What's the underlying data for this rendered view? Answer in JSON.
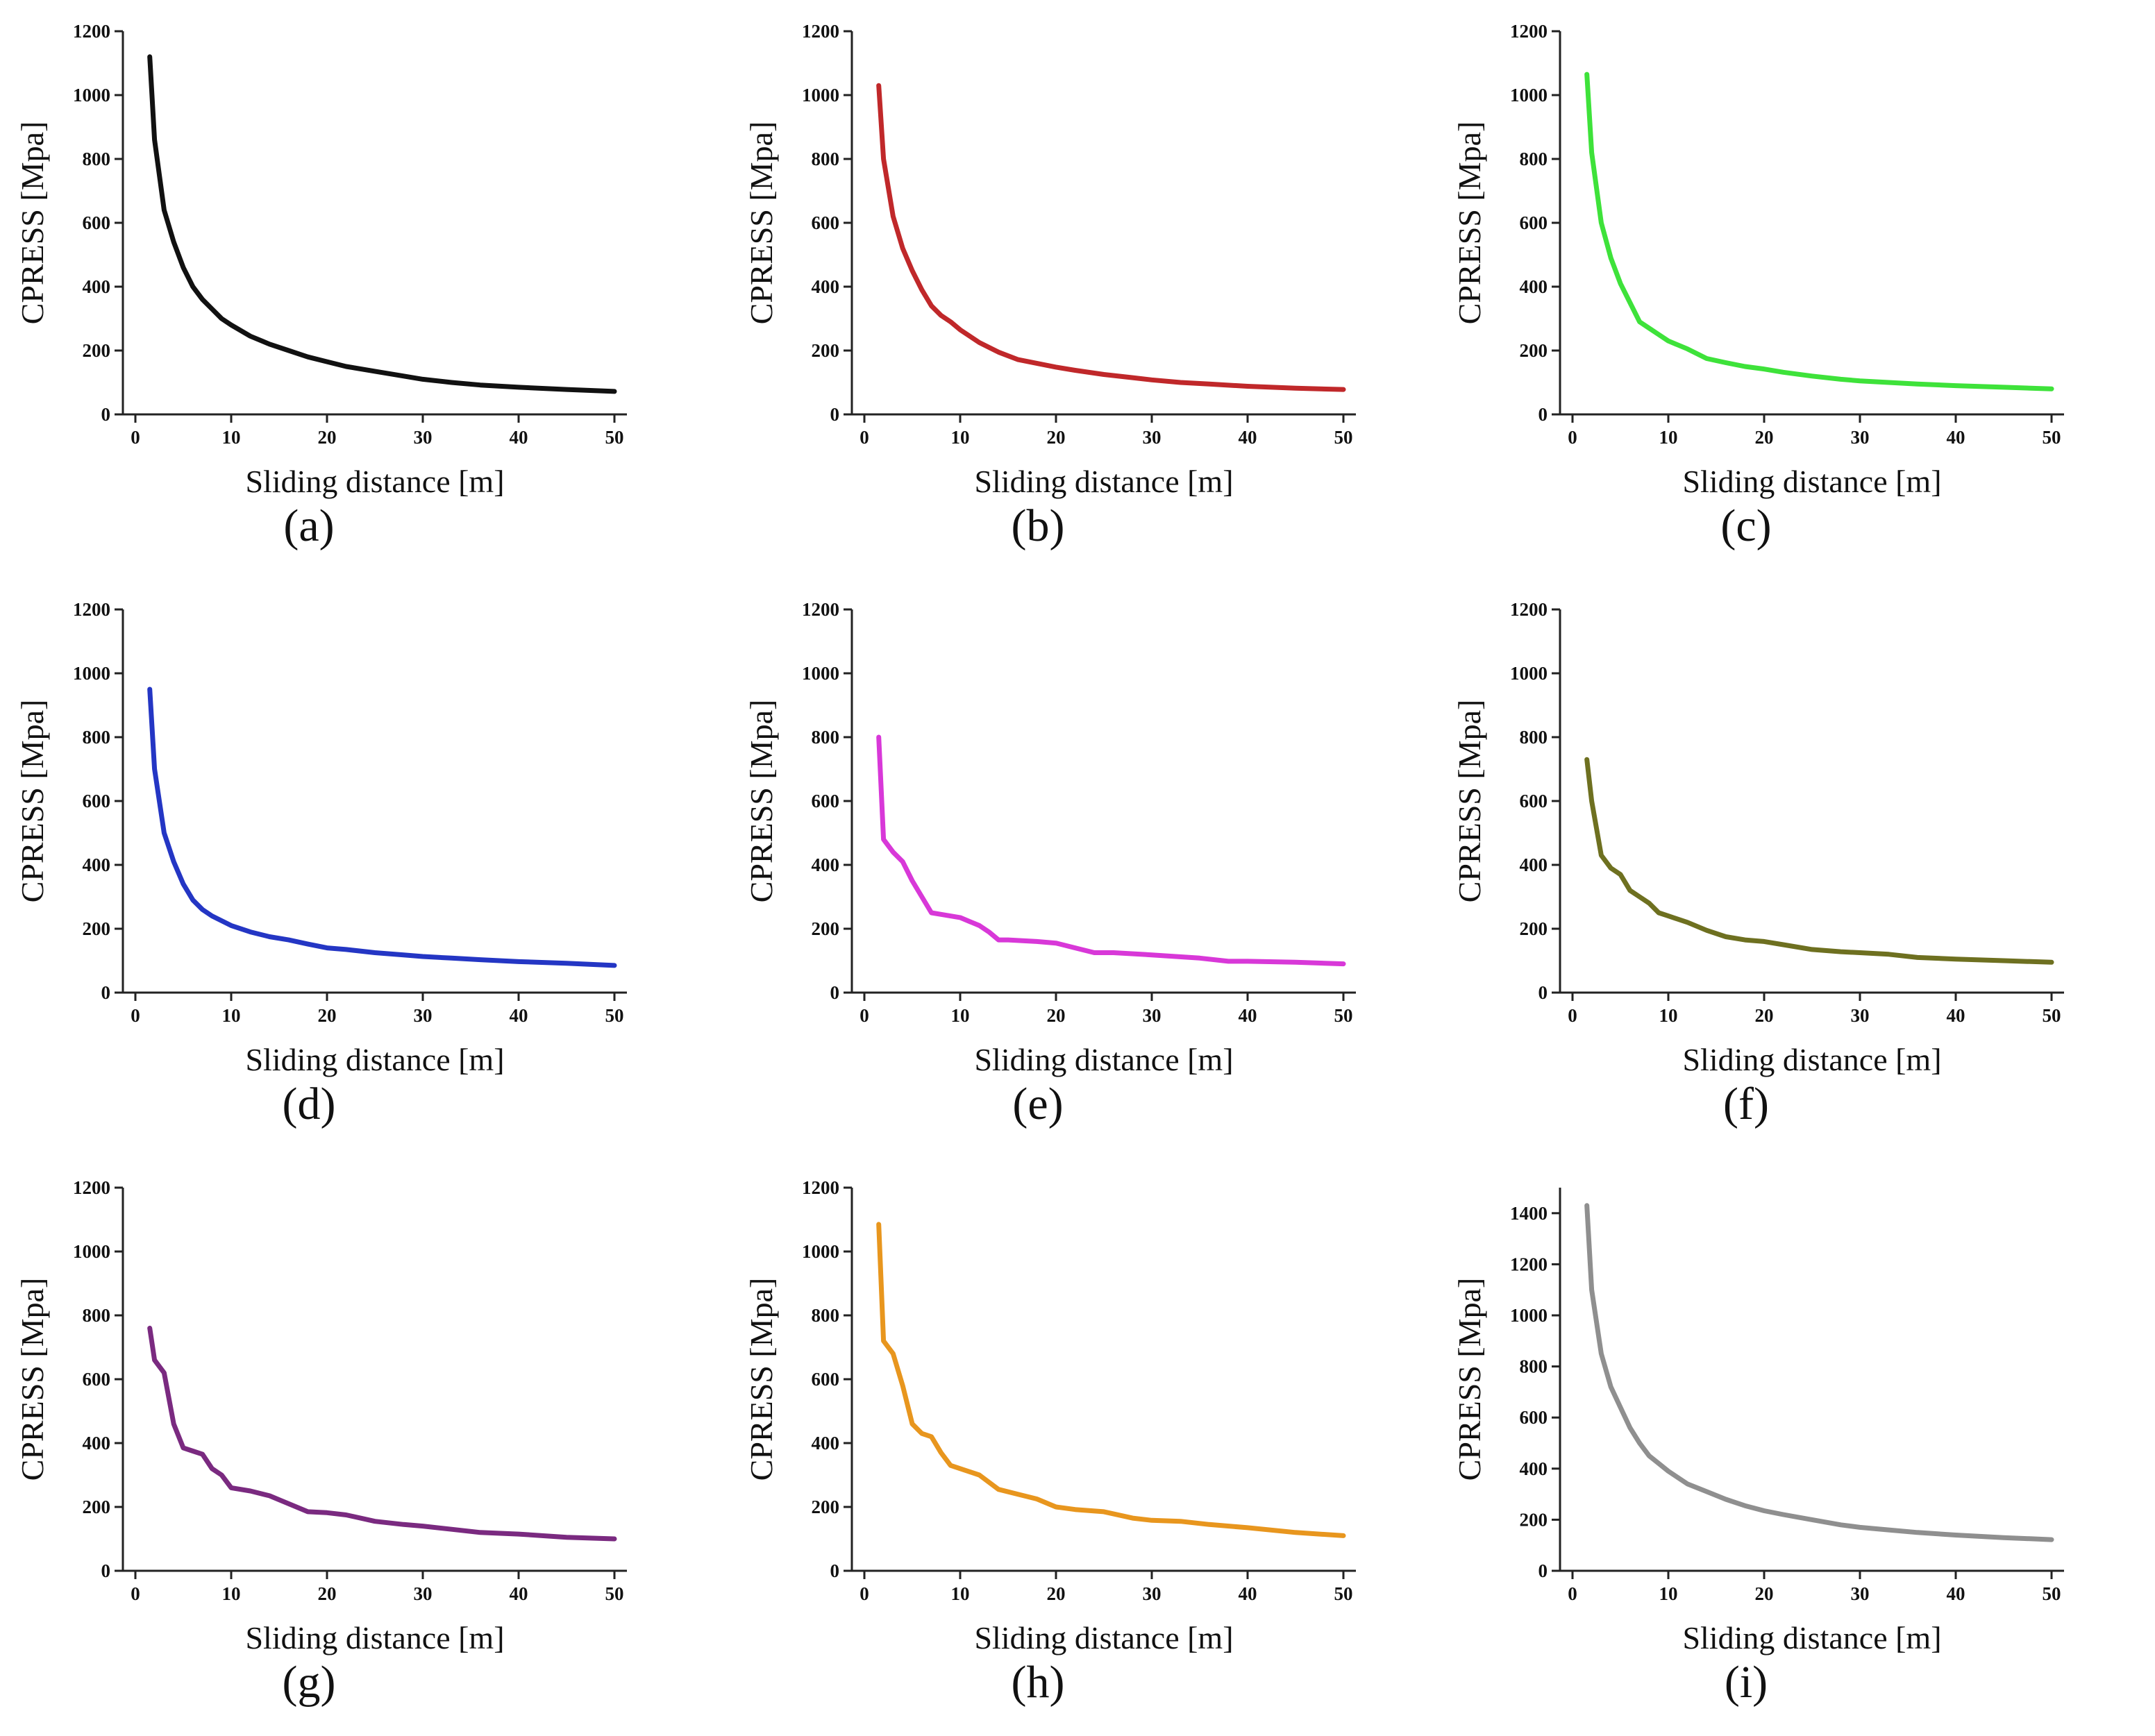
{
  "chart_data": [
    {
      "panel": "(a)",
      "panel_letter": "a",
      "type": "line",
      "color": "#111111",
      "xlabel": "Sliding distance  [m]",
      "ylabel": "CPRESS  [Mpa]",
      "xlim": [
        0,
        50
      ],
      "ylim": [
        0,
        1200
      ],
      "xticks": [
        0,
        10,
        20,
        30,
        40,
        50
      ],
      "yticks": [
        0,
        200,
        400,
        600,
        800,
        1000,
        1200
      ],
      "series": [
        {
          "name": "(a)",
          "x": [
            1.5,
            2,
            3,
            4,
            5,
            6,
            7,
            8,
            9,
            10,
            12,
            14,
            16,
            18,
            20,
            22,
            25,
            28,
            30,
            33,
            36,
            40,
            45,
            50
          ],
          "y": [
            1120,
            860,
            640,
            540,
            460,
            400,
            360,
            330,
            300,
            280,
            245,
            220,
            200,
            180,
            165,
            150,
            135,
            120,
            110,
            100,
            92,
            85,
            78,
            72
          ]
        }
      ]
    },
    {
      "panel": "(b)",
      "panel_letter": "b",
      "type": "line",
      "color": "#c0282a",
      "xlabel": "Sliding distance  [m]",
      "ylabel": "CPRESS  [Mpa]",
      "xlim": [
        0,
        50
      ],
      "ylim": [
        0,
        1200
      ],
      "xticks": [
        0,
        10,
        20,
        30,
        40,
        50
      ],
      "yticks": [
        0,
        200,
        400,
        600,
        800,
        1000,
        1200
      ],
      "series": [
        {
          "name": "(b)",
          "x": [
            1.5,
            2,
            3,
            4,
            5,
            6,
            7,
            8,
            9,
            10,
            12,
            14,
            16,
            18,
            20,
            22,
            25,
            28,
            30,
            33,
            36,
            40,
            45,
            50
          ],
          "y": [
            1030,
            800,
            620,
            520,
            450,
            390,
            340,
            310,
            290,
            265,
            225,
            195,
            172,
            160,
            148,
            138,
            125,
            115,
            108,
            100,
            95,
            88,
            82,
            78
          ]
        }
      ]
    },
    {
      "panel": "(c)",
      "panel_letter": "c",
      "type": "line",
      "color": "#3ee23a",
      "xlabel": "Sliding distance  [m]",
      "ylabel": "CPRESS  [Mpa]",
      "xlim": [
        0,
        50
      ],
      "ylim": [
        0,
        1200
      ],
      "xticks": [
        0,
        10,
        20,
        30,
        40,
        50
      ],
      "yticks": [
        0,
        200,
        400,
        600,
        800,
        1000,
        1200
      ],
      "series": [
        {
          "name": "(c)",
          "x": [
            1.5,
            2,
            3,
            4,
            5,
            6,
            7,
            8,
            9,
            10,
            12,
            14,
            16,
            18,
            20,
            22,
            25,
            28,
            30,
            33,
            36,
            40,
            45,
            50
          ],
          "y": [
            1065,
            820,
            600,
            490,
            410,
            350,
            290,
            270,
            250,
            230,
            205,
            175,
            162,
            150,
            142,
            132,
            120,
            110,
            105,
            100,
            95,
            90,
            85,
            80
          ]
        }
      ]
    },
    {
      "panel": "(d)",
      "panel_letter": "d",
      "type": "line",
      "color": "#2436c4",
      "xlabel": "Sliding distance  [m]",
      "ylabel": "CPRESS  [Mpa]",
      "xlim": [
        0,
        50
      ],
      "ylim": [
        0,
        1200
      ],
      "xticks": [
        0,
        10,
        20,
        30,
        40,
        50
      ],
      "yticks": [
        0,
        200,
        400,
        600,
        800,
        1000,
        1200
      ],
      "series": [
        {
          "name": "(d)",
          "x": [
            1.5,
            2,
            3,
            4,
            5,
            6,
            7,
            8,
            9,
            10,
            12,
            14,
            16,
            18,
            20,
            22,
            25,
            28,
            30,
            33,
            36,
            40,
            45,
            50
          ],
          "y": [
            950,
            700,
            500,
            410,
            340,
            290,
            260,
            240,
            225,
            210,
            190,
            175,
            165,
            152,
            140,
            135,
            125,
            118,
            113,
            108,
            103,
            97,
            92,
            85
          ]
        }
      ]
    },
    {
      "panel": "(e)",
      "panel_letter": "e",
      "type": "line",
      "color": "#d838d8",
      "xlabel": "Sliding distance  [m]",
      "ylabel": "CPRESS  [Mpa]",
      "xlim": [
        0,
        50
      ],
      "ylim": [
        0,
        1200
      ],
      "xticks": [
        0,
        10,
        20,
        30,
        40,
        50
      ],
      "yticks": [
        0,
        200,
        400,
        600,
        800,
        1000,
        1200
      ],
      "series": [
        {
          "name": "(e)",
          "x": [
            1.5,
            2,
            3,
            4,
            5,
            6,
            7,
            8,
            10,
            12,
            13,
            14,
            15,
            18,
            20,
            22,
            24,
            26,
            30,
            35,
            38,
            40,
            45,
            50
          ],
          "y": [
            800,
            480,
            440,
            410,
            350,
            300,
            250,
            245,
            235,
            210,
            190,
            165,
            165,
            160,
            155,
            140,
            125,
            125,
            118,
            108,
            98,
            98,
            95,
            90
          ]
        }
      ]
    },
    {
      "panel": "(f)",
      "panel_letter": "f",
      "type": "line",
      "color": "#6e7020",
      "xlabel": "Sliding distance  [m]",
      "ylabel": "CPRESS  [Mpa]",
      "xlim": [
        0,
        50
      ],
      "ylim": [
        0,
        1200
      ],
      "xticks": [
        0,
        10,
        20,
        30,
        40,
        50
      ],
      "yticks": [
        0,
        200,
        400,
        600,
        800,
        1000,
        1200
      ],
      "series": [
        {
          "name": "(f)",
          "x": [
            1.5,
            2,
            3,
            4,
            5,
            6,
            7,
            8,
            9,
            10,
            12,
            14,
            16,
            18,
            20,
            22,
            25,
            28,
            30,
            33,
            36,
            40,
            45,
            50
          ],
          "y": [
            730,
            600,
            430,
            390,
            370,
            320,
            300,
            280,
            250,
            240,
            220,
            195,
            175,
            165,
            160,
            150,
            135,
            128,
            125,
            120,
            110,
            105,
            100,
            95
          ]
        }
      ]
    },
    {
      "panel": "(g)",
      "panel_letter": "g",
      "type": "line",
      "color": "#7a2a80",
      "xlabel": "Sliding distance  [m]",
      "ylabel": "CPRESS  [Mpa]",
      "xlim": [
        0,
        50
      ],
      "ylim": [
        0,
        1200
      ],
      "xticks": [
        0,
        10,
        20,
        30,
        40,
        50
      ],
      "yticks": [
        0,
        200,
        400,
        600,
        800,
        1000,
        1200
      ],
      "series": [
        {
          "name": "(g)",
          "x": [
            1.5,
            2,
            3,
            4,
            5,
            6,
            7,
            8,
            9,
            10,
            12,
            14,
            16,
            18,
            20,
            22,
            25,
            28,
            30,
            33,
            36,
            40,
            45,
            50
          ],
          "y": [
            760,
            660,
            620,
            460,
            385,
            375,
            365,
            320,
            300,
            260,
            250,
            235,
            210,
            185,
            182,
            175,
            155,
            145,
            140,
            130,
            120,
            115,
            105,
            100
          ]
        }
      ]
    },
    {
      "panel": "(h)",
      "panel_letter": "h",
      "type": "line",
      "color": "#e8961e",
      "xlabel": "Sliding distance  [m]",
      "ylabel": "CPRESS  [Mpa]",
      "xlim": [
        0,
        50
      ],
      "ylim": [
        0,
        1200
      ],
      "xticks": [
        0,
        10,
        20,
        30,
        40,
        50
      ],
      "yticks": [
        0,
        200,
        400,
        600,
        800,
        1000,
        1200
      ],
      "series": [
        {
          "name": "(h)",
          "x": [
            1.5,
            2,
            3,
            4,
            5,
            6,
            7,
            8,
            9,
            10,
            12,
            14,
            16,
            18,
            20,
            22,
            25,
            28,
            30,
            33,
            36,
            40,
            45,
            50
          ],
          "y": [
            1085,
            720,
            680,
            580,
            460,
            430,
            420,
            370,
            330,
            320,
            300,
            255,
            240,
            225,
            200,
            192,
            185,
            165,
            158,
            155,
            145,
            135,
            120,
            110
          ]
        }
      ]
    },
    {
      "panel": "(i)",
      "panel_letter": "i",
      "type": "line",
      "color": "#8f8f8f",
      "xlabel": "Sliding distance  [m]",
      "ylabel": "CPRESS  [Mpa]",
      "xlim": [
        0,
        50
      ],
      "ylim": [
        0,
        1500
      ],
      "xticks": [
        0,
        10,
        20,
        30,
        40,
        50
      ],
      "yticks": [
        0,
        200,
        400,
        600,
        800,
        1000,
        1200,
        1400
      ],
      "series": [
        {
          "name": "(i)",
          "x": [
            1.5,
            2,
            3,
            4,
            5,
            6,
            7,
            8,
            9,
            10,
            12,
            14,
            16,
            18,
            20,
            22,
            25,
            28,
            30,
            33,
            36,
            40,
            45,
            50
          ],
          "y": [
            1430,
            1100,
            850,
            720,
            640,
            560,
            500,
            450,
            420,
            390,
            340,
            310,
            280,
            255,
            235,
            220,
            200,
            180,
            170,
            160,
            150,
            140,
            130,
            122
          ]
        }
      ]
    }
  ]
}
